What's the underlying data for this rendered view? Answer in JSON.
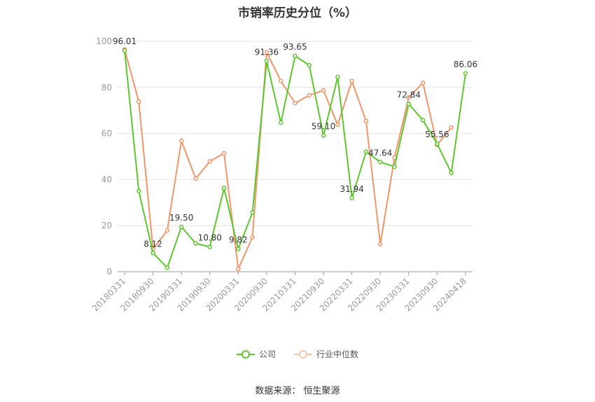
{
  "chart_data": {
    "type": "line",
    "title": "市销率历史分位（%）",
    "ylim": [
      0,
      100
    ],
    "y_ticks": [
      0,
      20,
      40,
      60,
      80,
      100
    ],
    "x_tick_labels": [
      "20180331",
      "20180930",
      "20190331",
      "20190930",
      "20200331",
      "20200930",
      "20210331",
      "20210930",
      "20220331",
      "20220930",
      "20230331",
      "20230930",
      "20240418"
    ],
    "grid": true,
    "legend_position": "bottom",
    "series": [
      {
        "name": "公司",
        "color": "#5cc72d",
        "values": [
          96.01,
          35.0,
          8.12,
          1.8,
          19.5,
          12.3,
          10.8,
          36.3,
          9.82,
          25.7,
          91.36,
          64.7,
          93.65,
          89.6,
          59.1,
          84.5,
          31.94,
          52.1,
          47.64,
          45.6,
          72.84,
          65.8,
          55.56,
          42.9,
          86.06
        ]
      },
      {
        "name": "行业中位数",
        "color": "#f2956a",
        "values": [
          96.5,
          73.8,
          9.8,
          17.9,
          56.8,
          40.4,
          47.9,
          51.4,
          1.2,
          15.0,
          95.2,
          82.8,
          73.2,
          76.6,
          78.7,
          63.8,
          82.8,
          65.4,
          11.9,
          49.5,
          75.6,
          82.0,
          55.0,
          62.6,
          null
        ]
      }
    ],
    "data_labels": [
      {
        "series": 0,
        "index": 0,
        "text": "96.01"
      },
      {
        "series": 0,
        "index": 2,
        "text": "8.12"
      },
      {
        "series": 0,
        "index": 4,
        "text": "19.50"
      },
      {
        "series": 0,
        "index": 6,
        "text": "10.80"
      },
      {
        "series": 0,
        "index": 8,
        "text": "9.82"
      },
      {
        "series": 0,
        "index": 10,
        "text": "91.36"
      },
      {
        "series": 0,
        "index": 12,
        "text": "93.65"
      },
      {
        "series": 0,
        "index": 14,
        "text": "59.10"
      },
      {
        "series": 0,
        "index": 16,
        "text": "31.94"
      },
      {
        "series": 0,
        "index": 18,
        "text": "47.64"
      },
      {
        "series": 0,
        "index": 20,
        "text": "72.84"
      },
      {
        "series": 0,
        "index": 22,
        "text": "55.56"
      },
      {
        "series": 0,
        "index": 24,
        "text": "86.06"
      }
    ]
  },
  "source": "数据来源：   恒生聚源"
}
